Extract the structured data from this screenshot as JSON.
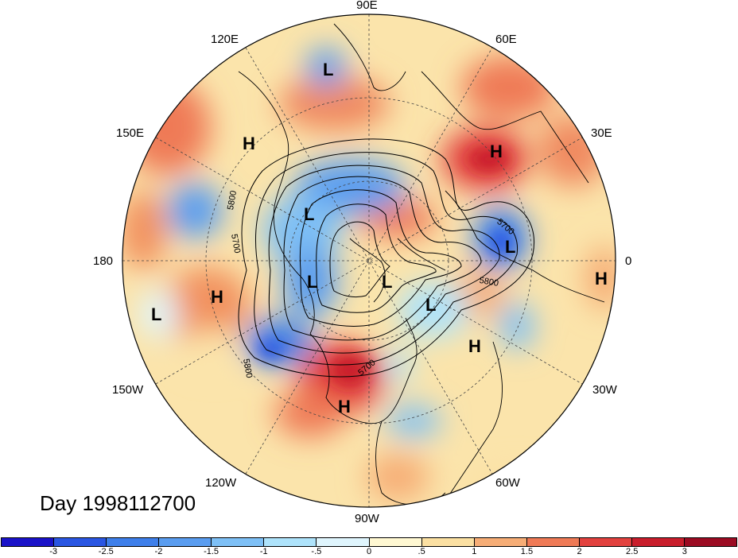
{
  "map": {
    "projection": "north-polar-stereographic",
    "longitude_labels": {
      "north": "90E",
      "n_left": "120E",
      "n_right": "60E",
      "w_upper": "150E",
      "e_upper": "30E",
      "west": "180",
      "east": "0",
      "w_lower": "150W",
      "e_lower": "30W",
      "s_left": "120W",
      "s_right": "60W",
      "south": "90W"
    },
    "contour_labels": [
      "5800",
      "5700",
      "5800",
      "5700",
      "5800",
      "5700"
    ],
    "pressure_systems": [
      "L",
      "H",
      "L",
      "H",
      "L",
      "L",
      "L",
      "L",
      "H",
      "H",
      "L",
      "H",
      "H"
    ]
  },
  "title": {
    "day": "Day 1998112700"
  },
  "colorbar": {
    "ticks": [
      "-3",
      "-2.5",
      "-2",
      "-1.5",
      "-1",
      "-.5",
      "0",
      ".5",
      "1",
      "1.5",
      "2",
      "2.5",
      "3"
    ],
    "colors": [
      "#1a12c8",
      "#2a56e2",
      "#3e7fea",
      "#5a9df0",
      "#7ec0f6",
      "#aee3fb",
      "#dff5fd",
      "#fff8d2",
      "#fbe0a2",
      "#f6ad76",
      "#ef7a56",
      "#e2413e",
      "#c91e2c",
      "#9b0b22"
    ]
  }
}
